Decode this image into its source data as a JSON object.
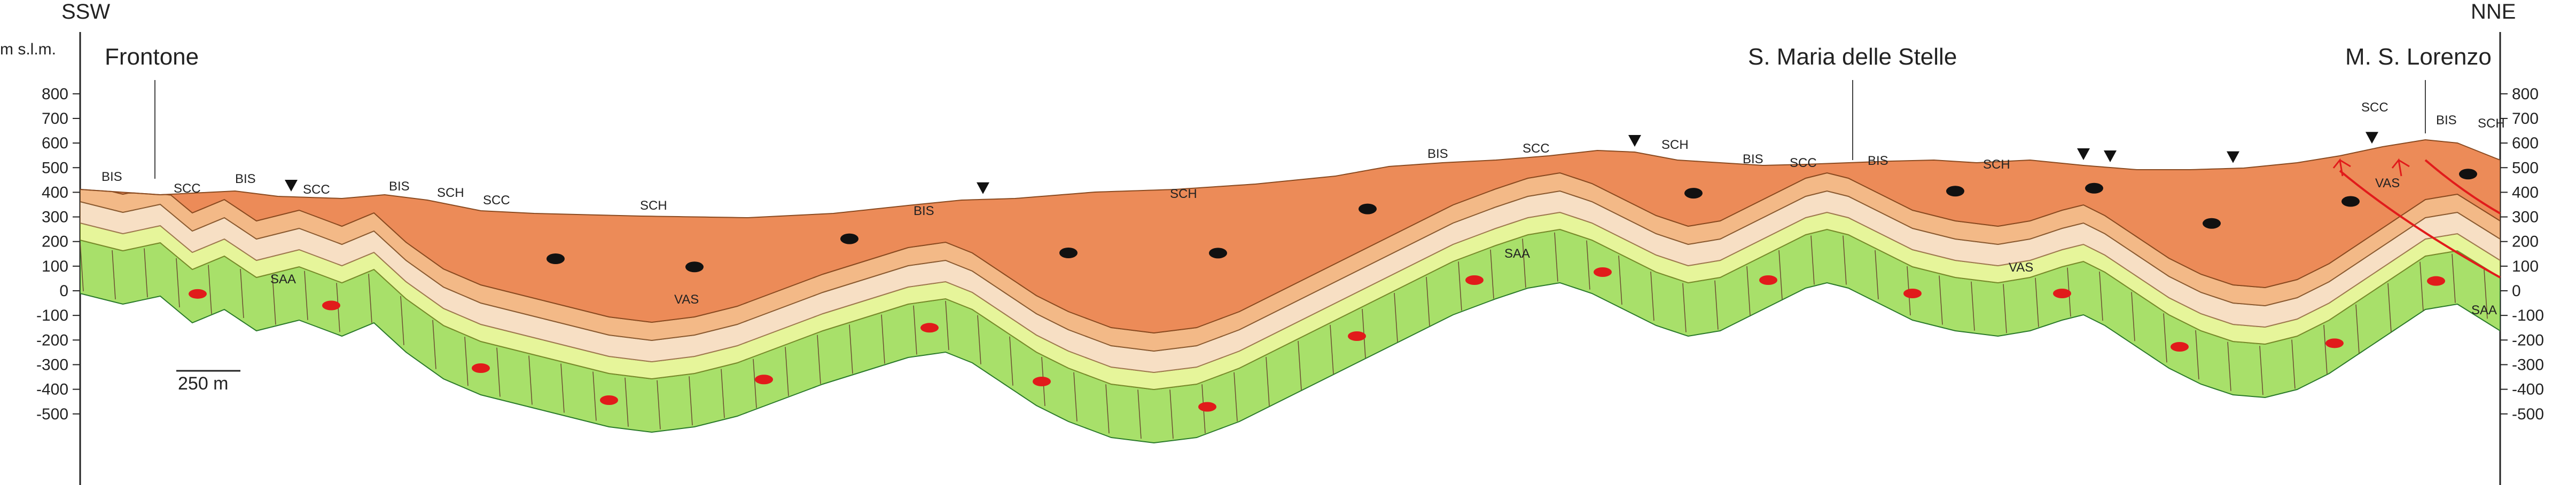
{
  "orientation": {
    "left": "SSW",
    "right": "NNE"
  },
  "yaxis": {
    "unit": "m s.l.m.",
    "ticks": [
      "800",
      "700",
      "600",
      "500",
      "400",
      "300",
      "200",
      "100",
      "0",
      "-100",
      "-200",
      "-300",
      "-400",
      "-500"
    ],
    "ticks_right": [
      "800",
      "700",
      "600",
      "500",
      "400",
      "300",
      "200",
      "100",
      "0",
      "-100",
      "-200",
      "-300",
      "-400",
      "-500"
    ]
  },
  "places": {
    "frontone": "Frontone",
    "santa_maria": "S. Maria delle Stelle",
    "ms_lorenzo": "M. S. Lorenzo"
  },
  "formation_labels": {
    "bis": "BIS",
    "scc": "SCC",
    "sch": "SCH",
    "vas": "VAS",
    "saa": "SAA"
  },
  "scale_bar": "250 m",
  "colors": {
    "saa": "#a8e06a",
    "vas": "#e6f59a",
    "scc": "#f7dfc4",
    "bis": "#f3b987",
    "sch": "#ec8b58",
    "nodule_red": "#e11b1b",
    "nodule_black": "#111111",
    "fault": "#e11b1b"
  }
}
